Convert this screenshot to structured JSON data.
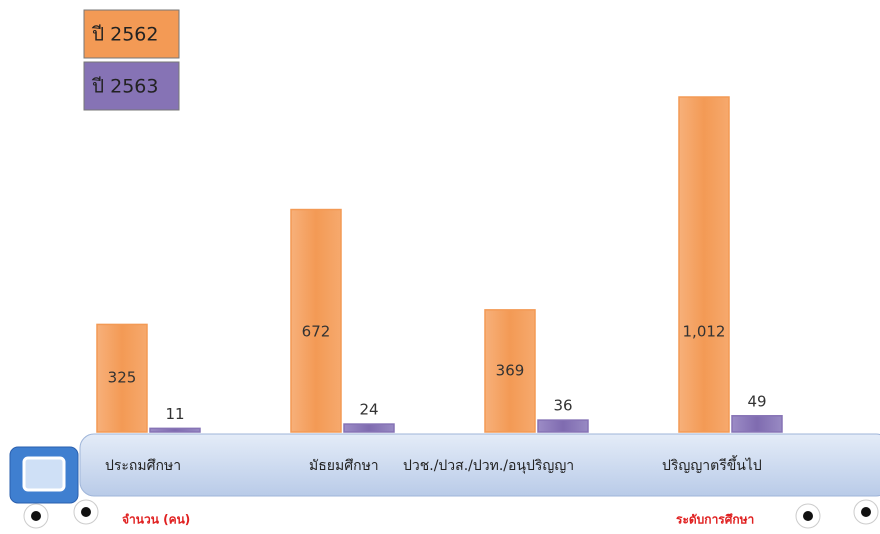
{
  "chart_data": {
    "type": "bar",
    "categories": [
      "ประถมศึกษา",
      "มัธยมศึกษา",
      "ปวช./ปวส./ปวท./อนุปริญญา",
      "ปริญญาตรีขึ้นไป"
    ],
    "series": [
      {
        "name": "ปี 2562",
        "color": "#f39a55",
        "values": [
          325,
          672,
          369,
          1012
        ],
        "value_labels": [
          "325",
          "672",
          "369",
          "1,012"
        ]
      },
      {
        "name": "ปี 2563",
        "color": "#8673b5",
        "values": [
          11,
          24,
          36,
          49
        ]
      }
    ],
    "y_label": "จำนวน (คน)",
    "x_label": "ระดับการศึกษา"
  }
}
